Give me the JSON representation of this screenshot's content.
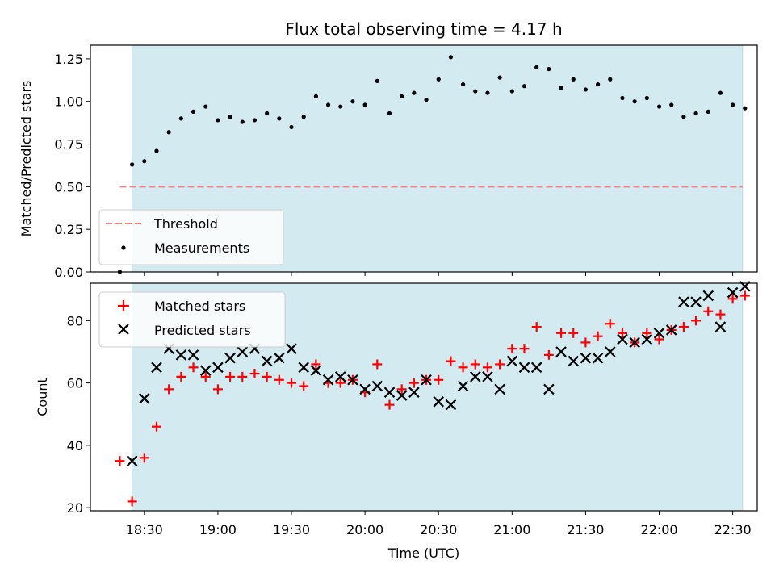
{
  "chart_data": [
    {
      "type": "scatter",
      "title": "Flux total observing time = 4.17 h",
      "xlabel": "",
      "ylabel": "Matched/Predicted stars",
      "ylim": [
        0.0,
        1.33
      ],
      "yticks": [
        "0.00",
        "0.25",
        "0.50",
        "0.75",
        "1.00",
        "1.25"
      ],
      "shaded_x": [
        "18:25",
        "22:34"
      ],
      "shade_color": "#d4eaf1",
      "threshold": {
        "name": "Threshold",
        "y": 0.5,
        "x": [
          "18:20",
          "22:34"
        ],
        "color": "#f08080"
      },
      "series": [
        {
          "name": "Measurements",
          "marker": "dot",
          "color": "#000000",
          "x": [
            "18:20",
            "18:25",
            "18:30",
            "18:35",
            "18:40",
            "18:45",
            "18:50",
            "18:55",
            "19:00",
            "19:05",
            "19:10",
            "19:15",
            "19:20",
            "19:25",
            "19:30",
            "19:35",
            "19:40",
            "19:45",
            "19:50",
            "19:55",
            "20:00",
            "20:05",
            "20:10",
            "20:15",
            "20:20",
            "20:25",
            "20:30",
            "20:35",
            "20:40",
            "20:45",
            "20:50",
            "20:55",
            "21:00",
            "21:05",
            "21:10",
            "21:15",
            "21:20",
            "21:25",
            "21:30",
            "21:35",
            "21:40",
            "21:45",
            "21:50",
            "21:55",
            "22:00",
            "22:05",
            "22:10",
            "22:15",
            "22:20",
            "22:25",
            "22:30",
            "22:35"
          ],
          "y": [
            0.0,
            0.63,
            0.65,
            0.71,
            0.82,
            0.9,
            0.94,
            0.97,
            0.89,
            0.91,
            0.88,
            0.89,
            0.93,
            0.9,
            0.85,
            0.91,
            1.03,
            0.98,
            0.97,
            1.0,
            0.98,
            1.12,
            0.93,
            1.03,
            1.05,
            1.01,
            1.13,
            1.26,
            1.1,
            1.06,
            1.05,
            1.14,
            1.06,
            1.09,
            1.2,
            1.19,
            1.08,
            1.13,
            1.07,
            1.1,
            1.13,
            1.02,
            1.0,
            1.02,
            0.97,
            0.98,
            0.91,
            0.93,
            0.94,
            1.05,
            0.98,
            0.96
          ]
        }
      ],
      "legend": {
        "position": "lower-left",
        "entries": [
          "Threshold",
          "Measurements"
        ]
      }
    },
    {
      "type": "scatter",
      "title": "",
      "xlabel": "Time (UTC)",
      "ylabel": "Count",
      "ylim": [
        19,
        92
      ],
      "yticks": [
        "20",
        "40",
        "60",
        "80"
      ],
      "xticks": [
        "18:30",
        "19:00",
        "19:30",
        "20:00",
        "20:30",
        "21:00",
        "21:30",
        "22:00",
        "22:30"
      ],
      "shaded_x": [
        "18:25",
        "22:34"
      ],
      "series": [
        {
          "name": "Matched stars",
          "marker": "plus",
          "color": "#ff0000",
          "x": [
            "18:20",
            "18:25",
            "18:30",
            "18:35",
            "18:40",
            "18:45",
            "18:50",
            "18:55",
            "19:00",
            "19:05",
            "19:10",
            "19:15",
            "19:20",
            "19:25",
            "19:30",
            "19:35",
            "19:40",
            "19:45",
            "19:50",
            "19:55",
            "20:00",
            "20:05",
            "20:10",
            "20:15",
            "20:20",
            "20:25",
            "20:30",
            "20:35",
            "20:40",
            "20:45",
            "20:50",
            "20:55",
            "21:00",
            "21:05",
            "21:10",
            "21:15",
            "21:20",
            "21:25",
            "21:30",
            "21:35",
            "21:40",
            "21:45",
            "21:50",
            "21:55",
            "22:00",
            "22:05",
            "22:10",
            "22:15",
            "22:20",
            "22:25",
            "22:30",
            "22:35"
          ],
          "y": [
            35,
            22,
            36,
            46,
            58,
            62,
            65,
            62,
            58,
            62,
            62,
            63,
            62,
            61,
            60,
            59,
            66,
            60,
            60,
            61,
            57,
            66,
            53,
            58,
            60,
            61,
            61,
            67,
            65,
            66,
            65,
            66,
            71,
            71,
            78,
            69,
            76,
            76,
            73,
            75,
            79,
            76,
            73,
            76,
            74,
            77,
            78,
            80,
            83,
            82,
            87,
            88
          ]
        },
        {
          "name": "Predicted stars",
          "marker": "x",
          "color": "#000000",
          "x": [
            "18:25",
            "18:30",
            "18:35",
            "18:40",
            "18:45",
            "18:50",
            "18:55",
            "19:00",
            "19:05",
            "19:10",
            "19:15",
            "19:20",
            "19:25",
            "19:30",
            "19:35",
            "19:40",
            "19:45",
            "19:50",
            "19:55",
            "20:00",
            "20:05",
            "20:10",
            "20:15",
            "20:20",
            "20:25",
            "20:30",
            "20:35",
            "20:40",
            "20:45",
            "20:50",
            "20:55",
            "21:00",
            "21:05",
            "21:10",
            "21:15",
            "21:20",
            "21:25",
            "21:30",
            "21:35",
            "21:40",
            "21:45",
            "21:50",
            "21:55",
            "22:00",
            "22:05",
            "22:10",
            "22:15",
            "22:20",
            "22:25",
            "22:30",
            "22:35"
          ],
          "y": [
            35,
            55,
            65,
            71,
            69,
            69,
            64,
            65,
            68,
            70,
            71,
            67,
            68,
            71,
            65,
            64,
            61,
            62,
            61,
            58,
            59,
            57,
            56,
            57,
            61,
            54,
            53,
            59,
            62,
            62,
            58,
            67,
            65,
            65,
            58,
            70,
            67,
            68,
            68,
            70,
            74,
            73,
            74,
            76,
            77,
            86,
            86,
            88,
            78,
            89,
            91
          ]
        }
      ],
      "legend": {
        "position": "upper-left",
        "entries": [
          "Matched stars",
          "Predicted stars"
        ]
      }
    }
  ]
}
